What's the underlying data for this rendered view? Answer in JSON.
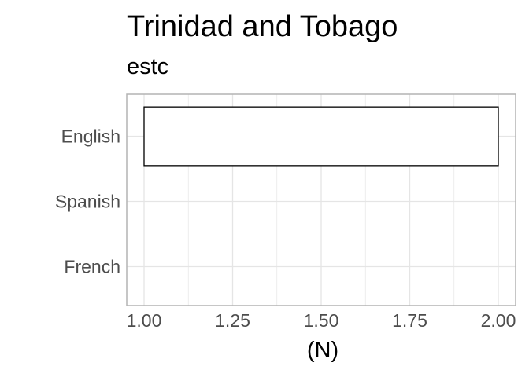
{
  "chart_data": {
    "type": "bar",
    "orientation": "horizontal",
    "title": "Trinidad and Tobago",
    "subtitle": "estc",
    "xlabel": "(N)",
    "ylabel": "",
    "categories": [
      "English",
      "Spanish",
      "French"
    ],
    "values": [
      2,
      1,
      1
    ],
    "baseline": 1,
    "xlim": [
      1.0,
      2.0
    ],
    "x_ticks": [
      "1.00",
      "1.25",
      "1.50",
      "1.75",
      "2.00"
    ],
    "grid": true,
    "legend": "none",
    "colors": {
      "bar_fill": "#ffffff",
      "bar_stroke": "#000000",
      "grid": "#e5e5e5",
      "panel_border": "#b3b3b3"
    }
  }
}
